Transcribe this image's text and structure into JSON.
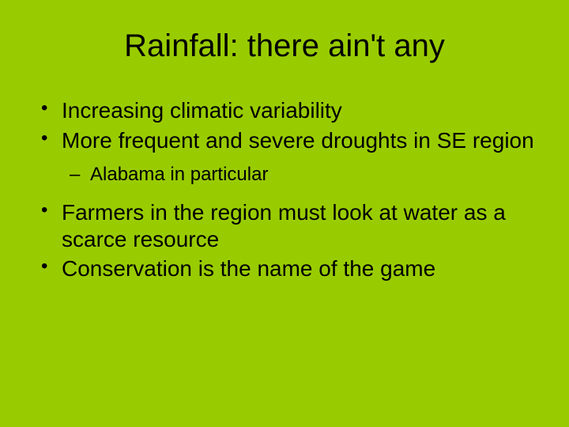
{
  "slide": {
    "title": "Rainfall: there ain't any",
    "bullets": [
      {
        "text": "Increasing climatic variability"
      },
      {
        "text": "More frequent and severe droughts in SE region"
      },
      {
        "text": "Alabama in particular",
        "sub": true
      },
      {
        "text": "Farmers in the region must look at water as a scarce resource"
      },
      {
        "text": "Conservation is the name of the game"
      }
    ],
    "background_color": "#99cc00",
    "text_color": "#000000",
    "title_fontsize": 40,
    "bullet_fontsize": 28,
    "sub_bullet_fontsize": 24
  }
}
